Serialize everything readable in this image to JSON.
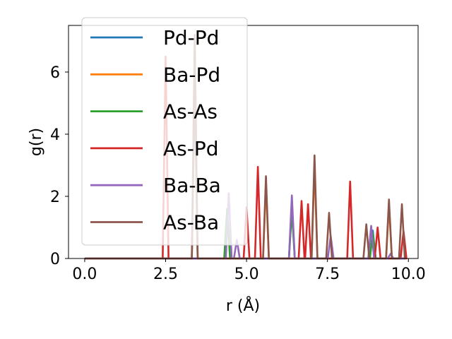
{
  "chart_data": {
    "type": "line",
    "title": "",
    "xlabel": "r (Å)",
    "ylabel": "g(r)",
    "xlim": [
      -0.5,
      10.3
    ],
    "ylim": [
      0,
      7.5
    ],
    "xticks": [
      0.0,
      2.5,
      5.0,
      7.5,
      10.0
    ],
    "xtick_labels": [
      "0.0",
      "2.5",
      "5.0",
      "7.5",
      "10.0"
    ],
    "yticks": [
      0,
      2,
      4,
      6
    ],
    "ytick_labels": [
      "0",
      "2",
      "4",
      "6"
    ],
    "grid": false,
    "legend_position": "upper-left",
    "series": [
      {
        "name": "Pd-Pd",
        "color": "#1f77b4",
        "peaks": [
          [
            3.4,
            5.5
          ],
          [
            6.4,
            1.8
          ],
          [
            8.9,
            0.9
          ]
        ]
      },
      {
        "name": "Ba-Pd",
        "color": "#ff7f0e",
        "peaks": [
          [
            3.4,
            6.8
          ],
          [
            5.6,
            2.4
          ],
          [
            7.1,
            3.0
          ],
          [
            9.4,
            1.7
          ]
        ]
      },
      {
        "name": "As-As",
        "color": "#2ca02c",
        "peaks": [
          [
            4.4,
            1.6
          ],
          [
            6.4,
            1.5
          ],
          [
            8.9,
            0.8
          ]
        ]
      },
      {
        "name": "As-Pd",
        "color": "#d62728",
        "peaks": [
          [
            2.5,
            6.5
          ],
          [
            5.0,
            1.65
          ],
          [
            5.35,
            2.95
          ],
          [
            6.7,
            1.85
          ],
          [
            6.9,
            1.75
          ],
          [
            8.2,
            2.48
          ],
          [
            9.05,
            1.0
          ],
          [
            9.85,
            0.88
          ]
        ]
      },
      {
        "name": "Ba-Ba",
        "color": "#9467bd",
        "peaks": [
          [
            4.45,
            2.1
          ],
          [
            4.7,
            0.6
          ],
          [
            6.4,
            2.03
          ],
          [
            7.6,
            0.72
          ],
          [
            8.85,
            1.05
          ],
          [
            9.45,
            0.15
          ]
        ]
      },
      {
        "name": "As-Ba",
        "color": "#8c564b",
        "peaks": [
          [
            3.4,
            7.2
          ],
          [
            5.6,
            2.65
          ],
          [
            7.1,
            3.32
          ],
          [
            7.55,
            1.47
          ],
          [
            8.7,
            1.1
          ],
          [
            9.4,
            1.9
          ],
          [
            9.8,
            1.75
          ]
        ]
      }
    ]
  }
}
